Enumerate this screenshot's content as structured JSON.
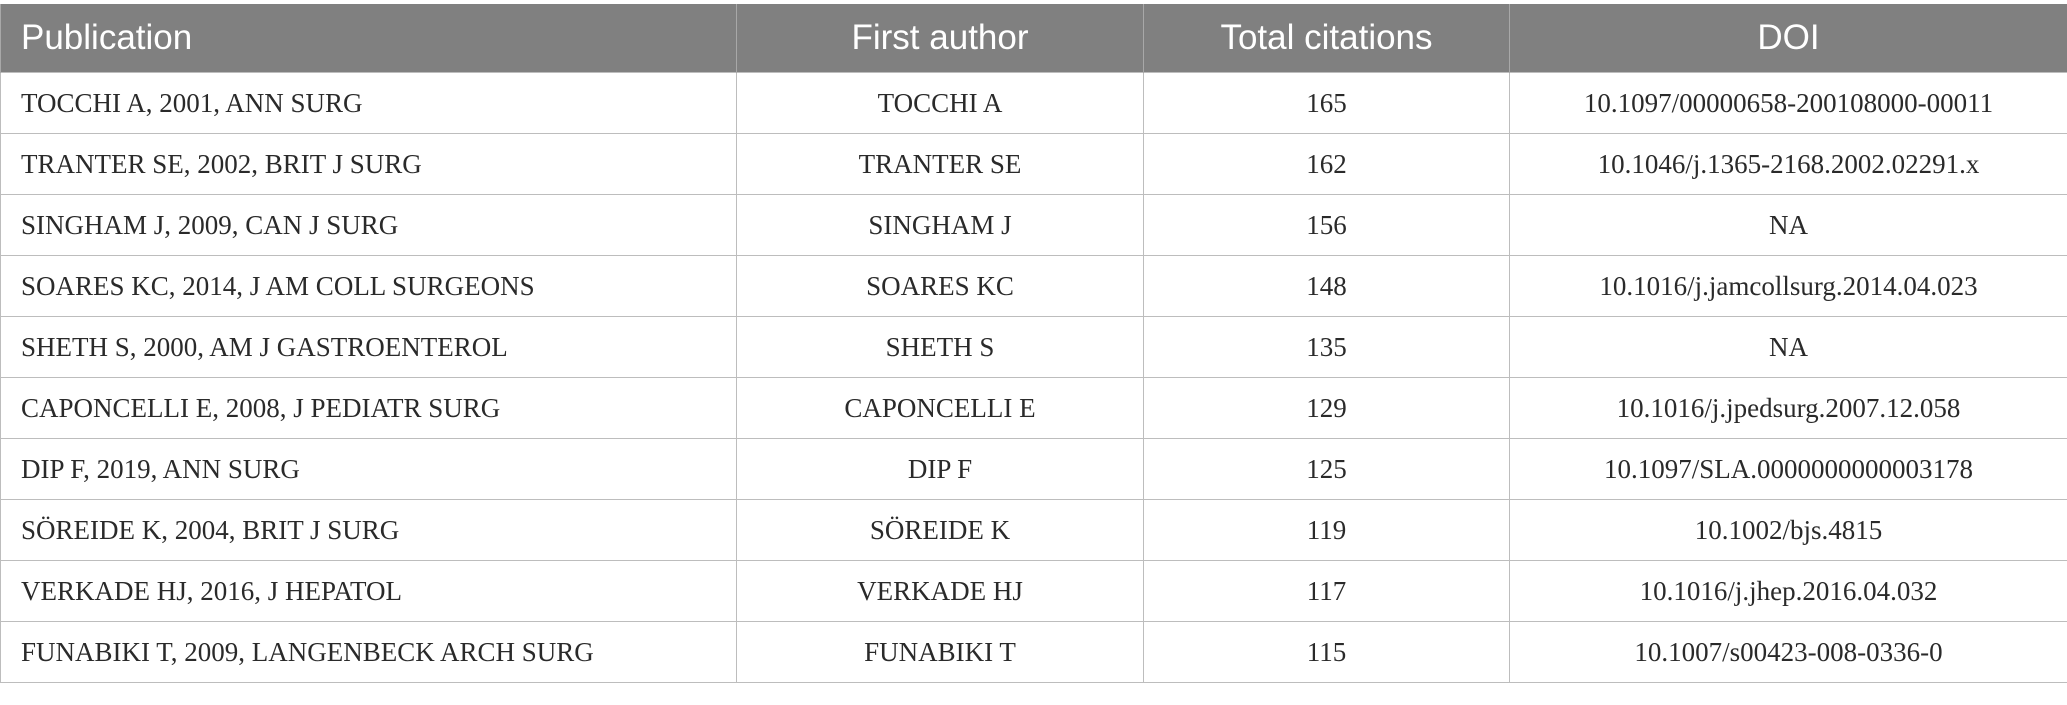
{
  "table": {
    "headers": [
      "Publication",
      "First author",
      "Total citations",
      "DOI"
    ],
    "rows": [
      {
        "publication": "TOCCHI A, 2001, ANN SURG",
        "first_author": "TOCCHI A",
        "total_citations": "165",
        "doi": "10.1097/00000658-200108000-00011"
      },
      {
        "publication": "TRANTER SE, 2002, BRIT J SURG",
        "first_author": "TRANTER SE",
        "total_citations": "162",
        "doi": "10.1046/j.1365-2168.2002.02291.x"
      },
      {
        "publication": "SINGHAM J, 2009, CAN J SURG",
        "first_author": "SINGHAM J",
        "total_citations": "156",
        "doi": "NA"
      },
      {
        "publication": "SOARES KC, 2014, J AM COLL SURGEONS",
        "first_author": "SOARES KC",
        "total_citations": "148",
        "doi": "10.1016/j.jamcollsurg.2014.04.023"
      },
      {
        "publication": "SHETH S, 2000, AM J GASTROENTEROL",
        "first_author": "SHETH S",
        "total_citations": "135",
        "doi": "NA"
      },
      {
        "publication": "CAPONCELLI E, 2008, J PEDIATR SURG",
        "first_author": "CAPONCELLI E",
        "total_citations": "129",
        "doi": "10.1016/j.jpedsurg.2007.12.058"
      },
      {
        "publication": "DIP F, 2019, ANN SURG",
        "first_author": "DIP F",
        "total_citations": "125",
        "doi": "10.1097/SLA.0000000000003178"
      },
      {
        "publication": "SÖREIDE K, 2004, BRIT J SURG",
        "first_author": "SÖREIDE K",
        "total_citations": "119",
        "doi": "10.1002/bjs.4815"
      },
      {
        "publication": "VERKADE HJ, 2016, J HEPATOL",
        "first_author": "VERKADE HJ",
        "total_citations": "117",
        "doi": "10.1016/j.jhep.2016.04.032"
      },
      {
        "publication": "FUNABIKI T, 2009, LANGENBECK ARCH SURG",
        "first_author": "FUNABIKI T",
        "total_citations": "115",
        "doi": "10.1007/s00423-008-0336-0"
      }
    ]
  },
  "colors": {
    "header_background": "#808080",
    "header_text": "#ffffff",
    "grid_lines": "#bdbdbd",
    "body_text": "#2a2a2a"
  }
}
